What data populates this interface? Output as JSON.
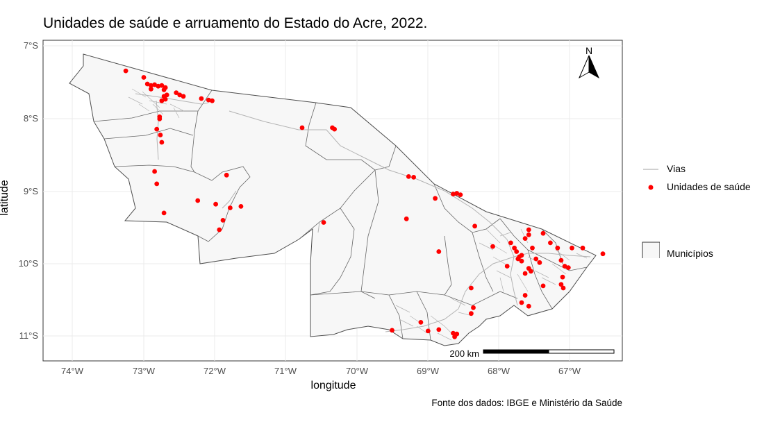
{
  "title": "Unidades de saúde e arruamento do Estado do Acre, 2022.",
  "caption": "Fonte dos dados: IBGE e Ministério da Saúde",
  "axes": {
    "xlabel": "longitude",
    "ylabel": "latitude",
    "x_ticks": [
      "74°W",
      "73°W",
      "72°W",
      "71°W",
      "70°W",
      "69°W",
      "68°W",
      "67°W"
    ],
    "y_ticks": [
      "7°S",
      "8°S",
      "9°S",
      "10°S",
      "11°S"
    ],
    "xlim": [
      -74.4,
      -66.35
    ],
    "ylim": [
      -11.35,
      -6.95
    ]
  },
  "legend": {
    "vias": "Vias",
    "unidades": "Unidades de saúde",
    "municipios": "Municípios"
  },
  "north_arrow": "N",
  "scale_bar": "200 km",
  "colors": {
    "points": "#ff0000",
    "state_fill": "#f7f7f7",
    "roads": "#b3b3b3",
    "borders": "#333333"
  },
  "chart_data": {
    "type": "scatter",
    "series": [
      {
        "name": "Unidades de saúde",
        "points": [
          [
            -73.25,
            -7.37
          ],
          [
            -73.0,
            -7.46
          ],
          [
            -72.95,
            -7.55
          ],
          [
            -72.9,
            -7.57
          ],
          [
            -72.85,
            -7.56
          ],
          [
            -72.8,
            -7.58
          ],
          [
            -72.75,
            -7.57
          ],
          [
            -72.72,
            -7.63
          ],
          [
            -72.7,
            -7.6
          ],
          [
            -72.68,
            -7.7
          ],
          [
            -72.72,
            -7.72
          ],
          [
            -72.9,
            -7.62
          ],
          [
            -72.75,
            -7.78
          ],
          [
            -72.7,
            -7.76
          ],
          [
            -72.55,
            -7.67
          ],
          [
            -72.5,
            -7.7
          ],
          [
            -72.45,
            -7.72
          ],
          [
            -72.2,
            -7.75
          ],
          [
            -72.1,
            -7.77
          ],
          [
            -72.05,
            -7.78
          ],
          [
            -72.78,
            -8.0
          ],
          [
            -72.78,
            -8.03
          ],
          [
            -72.82,
            -8.17
          ],
          [
            -72.77,
            -8.25
          ],
          [
            -72.75,
            -8.35
          ],
          [
            -72.85,
            -8.75
          ],
          [
            -72.82,
            -8.92
          ],
          [
            -72.72,
            -9.32
          ],
          [
            -72.25,
            -9.15
          ],
          [
            -72.0,
            -9.2
          ],
          [
            -71.95,
            -9.55
          ],
          [
            -71.9,
            -9.42
          ],
          [
            -71.8,
            -9.25
          ],
          [
            -71.65,
            -9.23
          ],
          [
            -71.85,
            -8.8
          ],
          [
            -70.8,
            -8.15
          ],
          [
            -70.38,
            -8.15
          ],
          [
            -70.35,
            -8.17
          ],
          [
            -70.5,
            -9.45
          ],
          [
            -69.32,
            -8.82
          ],
          [
            -69.25,
            -8.83
          ],
          [
            -69.35,
            -9.4
          ],
          [
            -68.95,
            -9.12
          ],
          [
            -68.7,
            -9.06
          ],
          [
            -68.65,
            -9.05
          ],
          [
            -68.6,
            -9.07
          ],
          [
            -68.4,
            -9.5
          ],
          [
            -68.9,
            -9.85
          ],
          [
            -68.15,
            -9.78
          ],
          [
            -67.9,
            -9.73
          ],
          [
            -67.85,
            -9.8
          ],
          [
            -67.82,
            -9.85
          ],
          [
            -67.78,
            -9.92
          ],
          [
            -67.75,
            -9.98
          ],
          [
            -67.8,
            -9.95
          ],
          [
            -67.7,
            -9.67
          ],
          [
            -67.65,
            -9.62
          ],
          [
            -67.6,
            -9.8
          ],
          [
            -67.55,
            -9.95
          ],
          [
            -67.65,
            -10.08
          ],
          [
            -67.7,
            -10.15
          ],
          [
            -67.62,
            -10.12
          ],
          [
            -67.5,
            -10.0
          ],
          [
            -67.35,
            -9.73
          ],
          [
            -67.25,
            -9.8
          ],
          [
            -67.2,
            -9.97
          ],
          [
            -67.15,
            -10.05
          ],
          [
            -67.05,
            -9.8
          ],
          [
            -66.9,
            -9.8
          ],
          [
            -66.62,
            -9.88
          ],
          [
            -67.65,
            -9.55
          ],
          [
            -67.45,
            -9.6
          ],
          [
            -67.45,
            -10.32
          ],
          [
            -67.2,
            -10.3
          ],
          [
            -67.17,
            -10.35
          ],
          [
            -67.1,
            -10.07
          ],
          [
            -67.18,
            -10.2
          ],
          [
            -67.7,
            -10.45
          ],
          [
            -67.65,
            -10.6
          ],
          [
            -67.75,
            -10.55
          ],
          [
            -68.45,
            -10.35
          ],
          [
            -68.42,
            -10.62
          ],
          [
            -68.45,
            -10.7
          ],
          [
            -69.05,
            -10.94
          ],
          [
            -68.9,
            -10.92
          ],
          [
            -68.7,
            -10.97
          ],
          [
            -68.68,
            -11.02
          ],
          [
            -68.65,
            -10.98
          ],
          [
            -69.15,
            -10.82
          ],
          [
            -69.55,
            -10.93
          ],
          [
            -67.95,
            -10.05
          ],
          [
            -67.75,
            -9.9
          ]
        ]
      }
    ]
  }
}
